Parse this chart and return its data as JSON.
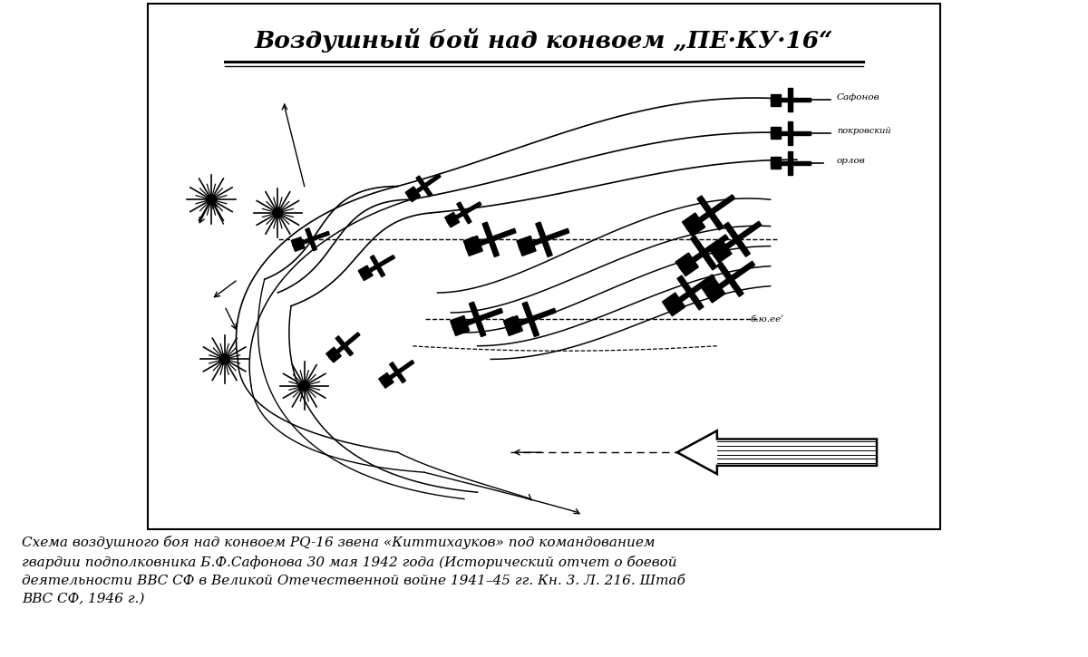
{
  "title": "Воздушный бой над конвоем „ПЕ·КУ·16“",
  "caption": "Схема воздушного боя над конвоем PQ-16 звена «Киттихауков» под командованием\nгвардии подполковника Б.Ф.Сафонова 30 мая 1942 года (Исторический отчет о боевой\nдеятельности ВВС СФ в Великой Отечественной войне 1941–45 гг. Кн. 3. Л. 216. Штаб\nВВС СФ, 1946 г.)",
  "label_safonov": "Сафонов",
  "label_pokrovsky": "покровский",
  "label_orlov": "орлов",
  "label_bjuee": "б.ю.ееʹ",
  "bg_color": "#ffffff",
  "text_color": "#000000"
}
